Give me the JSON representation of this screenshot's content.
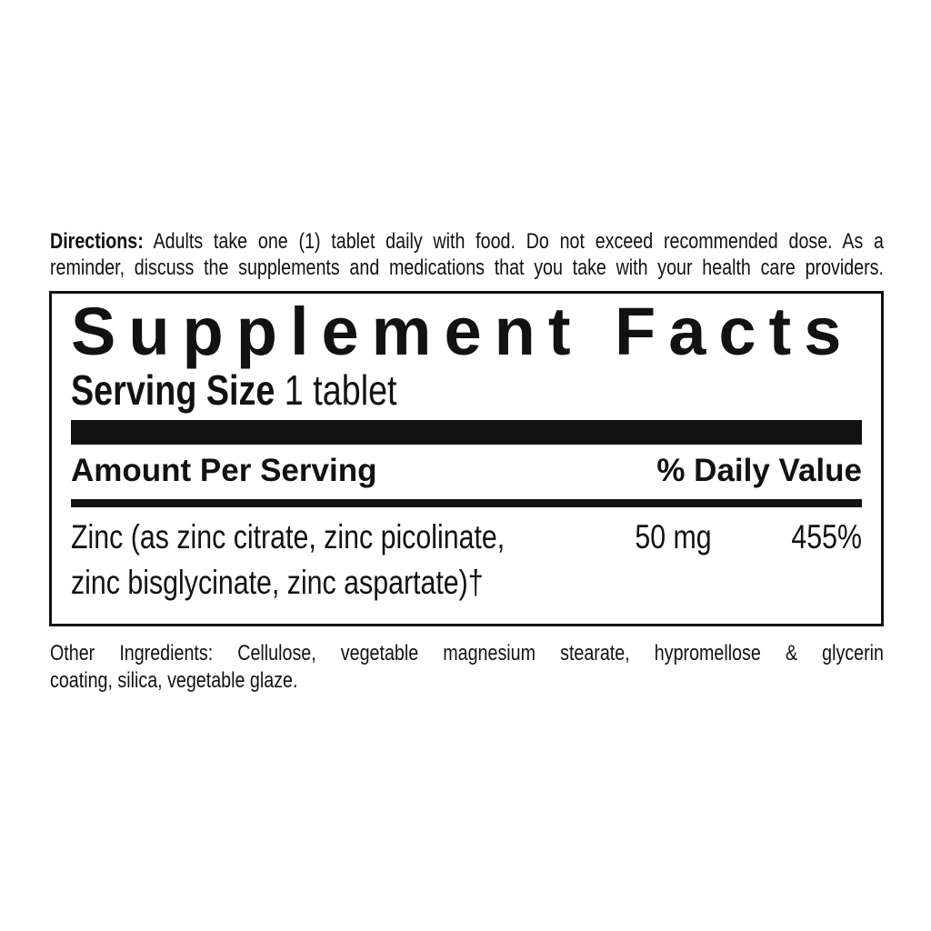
{
  "colors": {
    "ink": "#121212",
    "background": "#ffffff"
  },
  "directions": {
    "label": "Directions:",
    "line1_rest": " Adults take one (1) tablet daily with food. Do not exceed recommended dose.  As a",
    "line2": "reminder, discuss the supplements and medications that you take with your health care providers."
  },
  "supplement_facts": {
    "title": "Supplement Facts",
    "serving_size_label": "Serving Size",
    "serving_size_value": " 1 tablet",
    "column_headers": {
      "amount": "Amount Per Serving",
      "daily_value": "% Daily Value"
    },
    "rows": [
      {
        "name_line1": "Zinc (as zinc citrate, zinc picolinate,",
        "name_line2": "zinc bisglycinate, zinc aspartate)†",
        "amount": "50 mg",
        "daily_value": "455%"
      }
    ]
  },
  "other_ingredients": {
    "line1": "Other Ingredients: Cellulose, vegetable magnesium stearate, hypromellose & glycerin",
    "line2": "coating, silica, vegetable glaze."
  }
}
